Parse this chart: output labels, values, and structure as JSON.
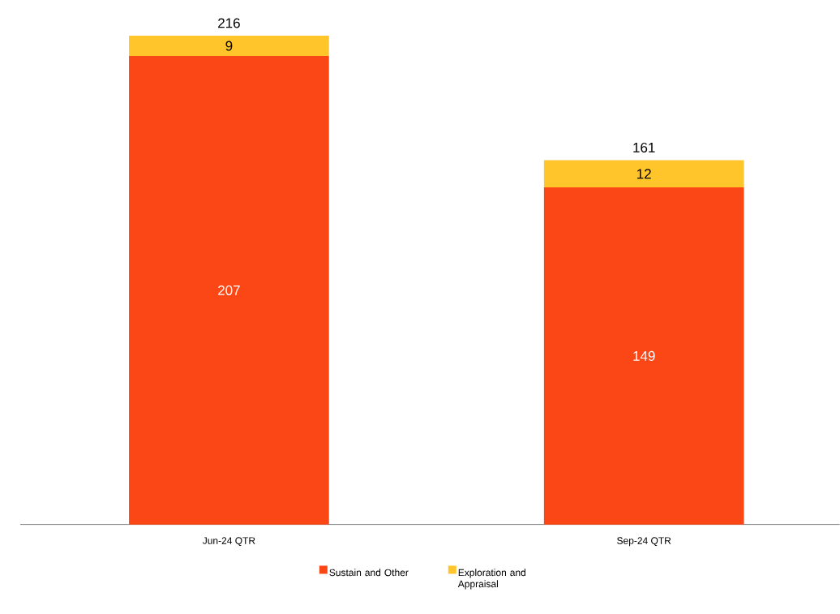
{
  "chart_data": {
    "type": "bar",
    "stacked": true,
    "categories": [
      "Jun-24 QTR",
      "Sep-24 QTR"
    ],
    "series": [
      {
        "name": "Sustain and Other",
        "color": "#fb4616",
        "values": [
          207,
          149
        ]
      },
      {
        "name": "Exploration and Appraisal",
        "color": "#ffc52a",
        "values": [
          9,
          12
        ]
      }
    ],
    "data_labels": true,
    "totals": [
      "216",
      "161"
    ],
    "legend": "bottom"
  }
}
